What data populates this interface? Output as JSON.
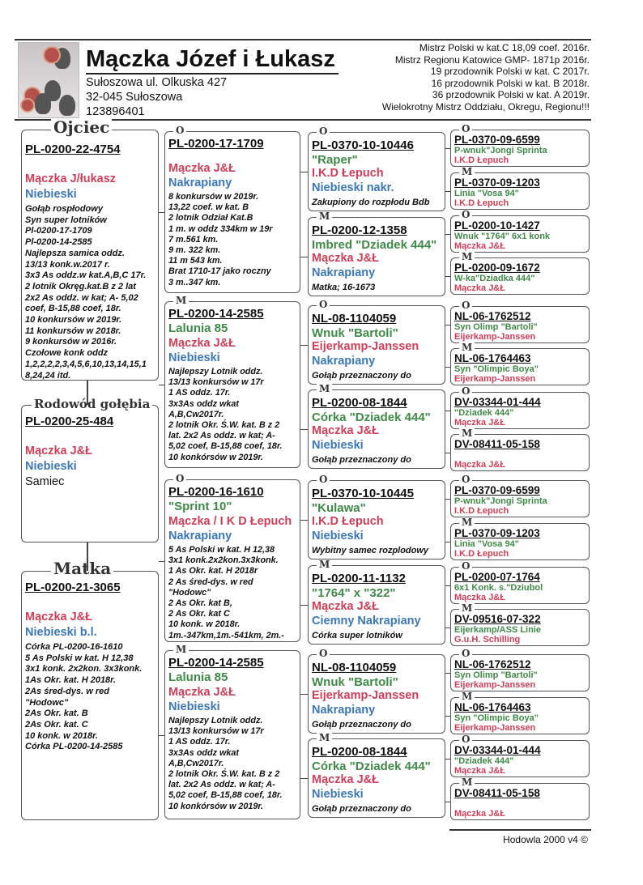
{
  "header": {
    "owner": "Mączka Józef i Łukasz",
    "address": [
      "Sułoszowa ul. Olkuska 427",
      "32-045 Sułoszowa",
      "123896401"
    ],
    "titles": [
      "Mistrz Polski w kat.C 18,09 coef. 2016r.",
      "Mistrz Regionu Katowice GMP- 1871p  2016r.",
      "19 przodownik Polski w kat. C 2017r.",
      "16 przodownik Polski w kat. B 2018r.",
      "36 przodownik Polski  w kat. A  2019r.",
      "Wielokrotny Mistrz Oddziału, Okregu, Regionu!!!"
    ],
    "photo_icon": "pigeon-photo"
  },
  "colors": {
    "name": "#3f8a47",
    "breeder": "#cf3e58",
    "color": "#3b78b6"
  },
  "subject": {
    "label": "Rodowód gołębia",
    "ring": "PL-0200-25-484",
    "breeder": "Mączka J&Ł",
    "color": "Niebieski",
    "sex": "Samiec"
  },
  "parents": [
    {
      "label": "Ojciec",
      "ring": "PL-0200-22-4754",
      "breeder": "Mączka J/łukasz",
      "color": "Niebieski",
      "notes": [
        "Gołąb rospłodowy",
        "Syn super lotników",
        "Pl-0200-17-1709",
        "Pl-0200-14-2585",
        "Najlepsza samica oddz.",
        "13/13 konk.w.2017 r.",
        "3x3 As oddz.w kat.A,B,C 17r.",
        "2 lotnik Okręg.kat.B z 2 lat",
        "2x2 As oddz. w kat; A- 5,02",
        "coef, B-15,88 coef, 18r.",
        "10 konkursów w 2019r.",
        "11 konkursów w 2018r.",
        "9 konkursów w 2016r.",
        "Czołowe konk oddz",
        "1,2,2,2,2,3,4,5,6,10,13,14,15,1",
        "8,24,24 itd."
      ]
    },
    {
      "label": "Matka",
      "ring": "PL-0200-21-3065",
      "breeder": "Mączka J&Ł",
      "color": "Niebieski b.l.",
      "notes": [
        "Córka PL-0200-16-1610",
        "5 As Polski w kat. H 12,38",
        "3x1 konk. 2x2kon. 3x3konk.",
        "1As Okr. kat. H 2018r.",
        "2As śred-dys. w red",
        "\"Hodowc\"",
        "2As Okr. kat. B",
        "2As Okr. kat. C",
        "10 konk. w 2018r.",
        "Córka PL-0200-14-2585"
      ]
    }
  ],
  "grandparents": [
    {
      "label": "O",
      "ring": "PL-0200-17-1709",
      "breeder": "Mączka J&Ł",
      "color": "Nakrapiany",
      "notes": [
        "8 konkursów w 2019r.",
        "13,22 coef. w kat. B",
        "2 lotnik Odział Kat.B",
        "1 m. w oddz 334km w 19r",
        "7 m.561 km.",
        "9 m. 322 km.",
        "11 m 543 km.",
        "Brat 1710-17 jako roczny",
        "3 m..347 km."
      ]
    },
    {
      "label": "M",
      "ring": "PL-0200-14-2585",
      "name": "Lalunia 85",
      "breeder": "Mączka J&Ł",
      "color": "Niebieski",
      "notes": [
        "Najlepszy Lotnik oddz.",
        "13/13 konkursów w 17r",
        "1 AS oddz. 17r.",
        "3x3As oddz wkat",
        "A,B,Cw2017r.",
        "2 lotnik Okr. Ś.W. kat. B z 2",
        "lat. 2x2 As oddz. w kat;   A-",
        "5,02 coef, B-15,88 coef, 18r.",
        "10 konkórsów w 2019r."
      ]
    },
    {
      "label": "O",
      "ring": "PL-0200-16-1610",
      "name": "\"Sprint 10\"",
      "breeder": "Mączka / I K D Łepuch",
      "color": "Nakrapiany",
      "notes": [
        "5 As Polski w kat. H 12,38",
        "3x1 konk.2x2kon.3x3konk.",
        "1 As Okr. kat. H  2018r",
        "2 As śred-dys. w red",
        "\"Hodowc\"",
        " 2 As Okr. kat B,",
        " 2 As Okr. kat C",
        "10 konk. w 2018r.",
        "1m.-347km,1m.-541km, 2m.-"
      ]
    },
    {
      "label": "M",
      "ring": "PL-0200-14-2585",
      "name": "Lalunia 85",
      "breeder": "Mączka J&Ł",
      "color": "Niebieski",
      "notes": [
        "Najlepszy Lotnik oddz.",
        "13/13 konkursów w 17r",
        "1 AS oddz. 17r.",
        "3x3As oddz wkat",
        "A,B,Cw2017r.",
        "2 lotnik Okr. Ś.W. kat. B z 2",
        "lat. 2x2 As oddz. w kat;   A-",
        "5,02 coef, B-15,88 coef, 18r.",
        "10 konkórsów w 2019r."
      ]
    }
  ],
  "great_grandparents": [
    {
      "label": "O",
      "ring": "PL-0370-10-10446",
      "name": "\"Raper\"",
      "breeder": "I.K.D Łepuch",
      "color": "Niebieski nakr.",
      "notes": [
        "Zakupiony do rozpłodu Bdb"
      ]
    },
    {
      "label": "M",
      "ring": "PL-0200-12-1358",
      "name": "Imbred \"Dziadek 444\"",
      "breeder": "Mączka J&Ł",
      "color": "Nakrapiany",
      "notes": [
        "Matka; 16-1673"
      ]
    },
    {
      "label": "O",
      "ring": "NL-08-1104059",
      "name": "Wnuk \"Bartoli\"",
      "breeder": "Eijerkamp-Janssen",
      "color": "Nakrapiany",
      "notes": [
        "Gołąb przeznaczony do"
      ]
    },
    {
      "label": "M",
      "ring": " PL-0200-08-1844",
      "name": "Córka \"Dziadek 444\"",
      "breeder": "Mączka J&Ł",
      "color": "Niebieski",
      "notes": [
        "Gołąb przeznaczony do"
      ]
    },
    {
      "label": "O",
      "ring": "PL-0370-10-10445",
      "name": "\"Kulawa\"",
      "breeder": "I.K.D Łepuch",
      "color": "Niebieski",
      "notes": [
        "Wybitny samec rozplodowy"
      ]
    },
    {
      "label": "M",
      "ring": "PL-0200-11-1132",
      "name": "\"1764\" x \"322\"",
      "breeder": "Mączka J&Ł",
      "color": "Ciemny Nakrapiany",
      "notes": [
        "Córka super lotników"
      ]
    },
    {
      "label": "O",
      "ring": "NL-08-1104059",
      "name": "Wnuk \"Bartoli\"",
      "breeder": "Eijerkamp-Janssen",
      "color": "Nakrapiany",
      "notes": [
        "Gołąb przeznaczony do"
      ]
    },
    {
      "label": "M",
      "ring": " PL-0200-08-1844",
      "name": "Córka \"Dziadek 444\"",
      "breeder": "Mączka J&Ł",
      "color": "Niebieski",
      "notes": [
        "Gołąb przeznaczony do"
      ]
    }
  ],
  "gg_grandparents": [
    {
      "label": "O",
      "ring": "PL-0370-09-6599",
      "name": "P-wnuk\"Jongi Sprinta",
      "breeder": "I.K.D Łepuch"
    },
    {
      "label": "M",
      "ring": "PL-0370-09-1203",
      "name": "Linia \"Vosa 94\"",
      "breeder": "I.K.D Łepuch"
    },
    {
      "label": "O",
      "ring": "PL-0200-10-1427",
      "name": "Wnuk \"1764\" 6x1 konk",
      "breeder": "Mączka J&Ł"
    },
    {
      "label": "M",
      "ring": "PL-0200-09-1672",
      "name": "W-ka\"Dziadka 444\"",
      "breeder": "Mączka J&Ł"
    },
    {
      "label": "O",
      "ring": "NL-06-1762512",
      "name": "Syn Olimp \"Bartoli\"",
      "breeder": "Eijerkamp-Janssen"
    },
    {
      "label": "M",
      "ring": "NL-06-1764463",
      "name": "Syn \"Olimpic Boya\"",
      "breeder": "Eijerkamp-Janssen"
    },
    {
      "label": "O",
      "ring": "DV-03344-01-444",
      "name": "\"Dziadek 444\"",
      "breeder": "Mączka J&Ł"
    },
    {
      "label": "M",
      "ring": "DV-08411-05-158",
      "name": "",
      "breeder": "Mączka J&Ł"
    },
    {
      "label": "O",
      "ring": "PL-0370-09-6599",
      "name": "P-wnuk\"Jongi Sprinta",
      "breeder": "I.K.D Łepuch"
    },
    {
      "label": "M",
      "ring": "PL-0370-09-1203",
      "name": "Linia \"Vosa 94\"",
      "breeder": "I.K.D Łepuch"
    },
    {
      "label": "O",
      "ring": "PL-0200-07-1764",
      "name": "6x1 Konk. s.\"Dziubol",
      "breeder": "Mączka J&Ł"
    },
    {
      "label": "M",
      "ring": "DV-09516-07-322",
      "name": "Eijerkamp/ASS Linie",
      "breeder": "G.u.H. Schilling"
    },
    {
      "label": "O",
      "ring": "NL-06-1762512",
      "name": "Syn Olimp \"Bartoli\"",
      "breeder": "Eijerkamp-Janssen"
    },
    {
      "label": "M",
      "ring": "NL-06-1764463",
      "name": "Syn \"Olimpic Boya\"",
      "breeder": "Eijerkamp-Janssen"
    },
    {
      "label": "O",
      "ring": "DV-03344-01-444",
      "name": "\"Dziadek 444\"",
      "breeder": "Mączka J&Ł"
    },
    {
      "label": "M",
      "ring": "DV-08411-05-158",
      "name": "",
      "breeder": "Mączka J&Ł"
    }
  ],
  "footer": {
    "text": "Hodowla 2000 v4 ©"
  }
}
